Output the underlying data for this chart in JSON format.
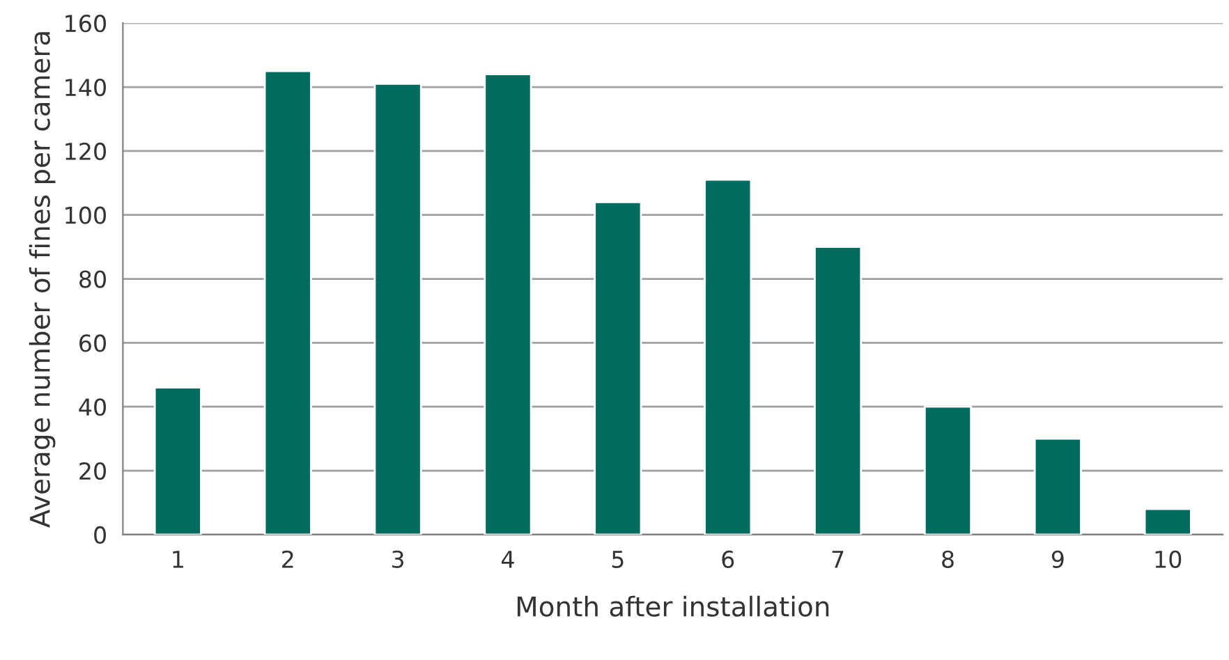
{
  "chart_data": {
    "type": "bar",
    "xlabel": "Month after installation",
    "ylabel": "Average number of fines per camera",
    "categories": [
      "1",
      "2",
      "3",
      "4",
      "5",
      "6",
      "7",
      "8",
      "9",
      "10"
    ],
    "values": [
      46,
      145,
      141,
      144,
      104,
      111,
      90,
      40,
      30,
      8
    ],
    "color": "#006b5f",
    "ylim": [
      0,
      160
    ],
    "yticks": [
      0,
      20,
      40,
      60,
      80,
      100,
      120,
      140,
      160
    ],
    "grid": "y"
  }
}
